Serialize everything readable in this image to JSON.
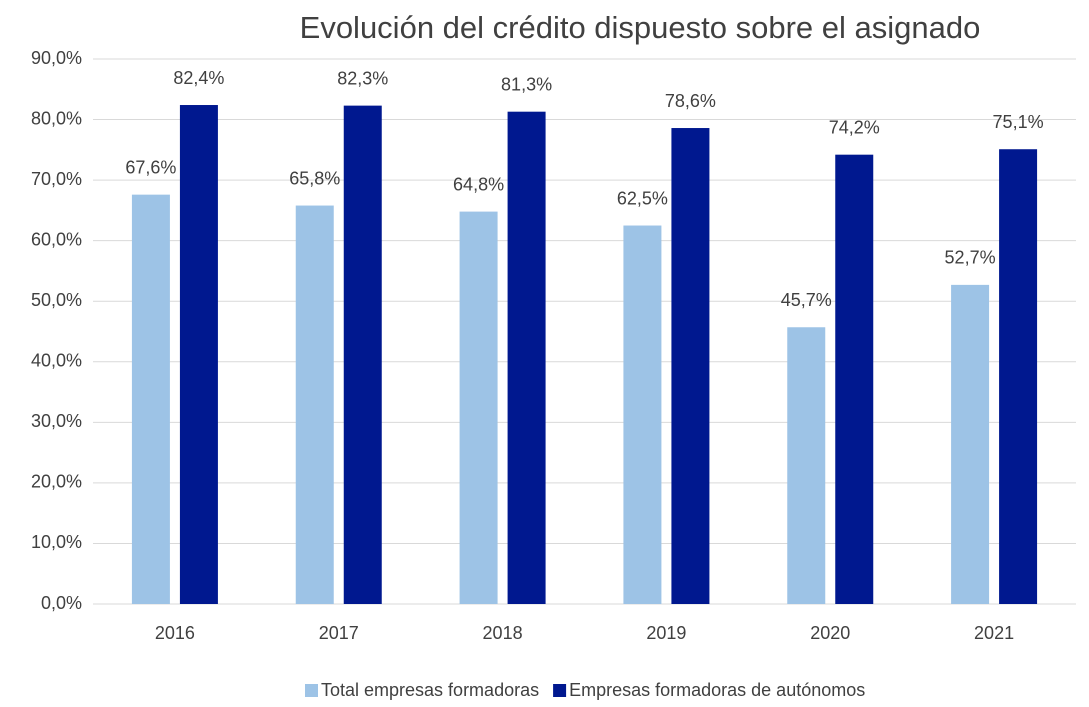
{
  "chart_data": {
    "type": "bar",
    "title": "Evolución del crédito dispuesto sobre el asignado",
    "categories": [
      "2016",
      "2017",
      "2018",
      "2019",
      "2020",
      "2021"
    ],
    "series": [
      {
        "name": "Total empresas formadoras",
        "color": "#9DC3E6",
        "values": [
          67.6,
          65.8,
          64.8,
          62.5,
          45.7,
          52.7
        ],
        "value_labels": [
          "67,6%",
          "65,8%",
          "64,8%",
          "62,5%",
          "45,7%",
          "52,7%"
        ]
      },
      {
        "name": "Empresas formadoras de autónomos",
        "color": "#00188F",
        "values": [
          82.4,
          82.3,
          81.3,
          78.6,
          74.2,
          75.1
        ],
        "value_labels": [
          "82,4%",
          "82,3%",
          "81,3%",
          "78,6%",
          "74,2%",
          "75,1%"
        ]
      }
    ],
    "ylim": [
      0,
      90
    ],
    "yticks": [
      {
        "value": 0,
        "label": "0,0%"
      },
      {
        "value": 10,
        "label": "10,0%"
      },
      {
        "value": 20,
        "label": "20,0%"
      },
      {
        "value": 30,
        "label": "30,0%"
      },
      {
        "value": 40,
        "label": "40,0%"
      },
      {
        "value": 50,
        "label": "50,0%"
      },
      {
        "value": 60,
        "label": "60,0%"
      },
      {
        "value": 70,
        "label": "70,0%"
      },
      {
        "value": 80,
        "label": "80,0%"
      },
      {
        "value": 90,
        "label": "90,0%"
      }
    ],
    "grid": true,
    "legend": "bottom"
  }
}
